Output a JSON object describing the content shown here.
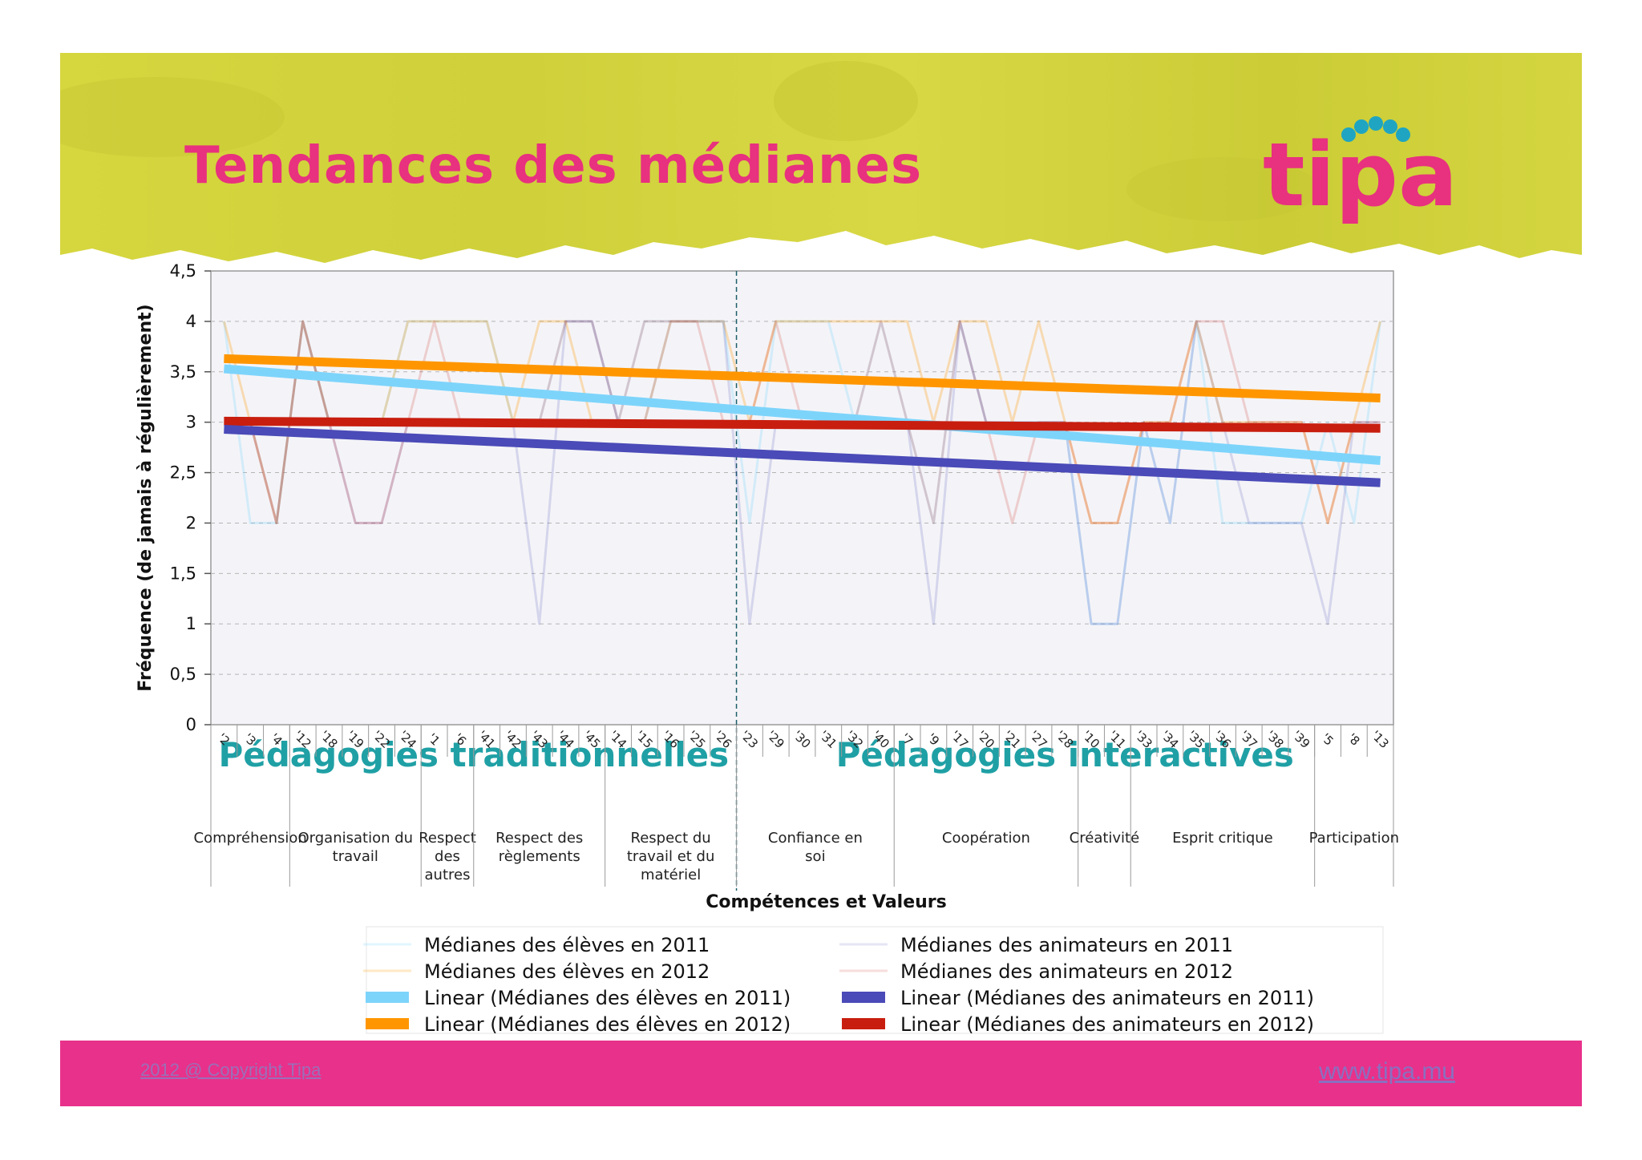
{
  "slide": {
    "title": "Tendances des médianes",
    "logo_text": "tipa",
    "footer_copyright": "2012 @ Copyright Tipa",
    "footer_url": "www.tipa.mu"
  },
  "colors": {
    "title": "#e8317f",
    "header_band": "#d4d53c",
    "footer_band": "#e8318a",
    "section_text": "#1fa0a5",
    "eleves_2011": "#7dd4fb",
    "eleves_2012": "#ff9600",
    "animateurs_2011": "#4a4ab8",
    "animateurs_2012": "#c81e0f"
  },
  "chart_data": {
    "type": "line",
    "xlabel": "Compétences et Valeurs",
    "ylabel": "Fréquence (de jamais à régulièrement)",
    "ylim": [
      0,
      4.5
    ],
    "yticks": [
      "0",
      "0,5",
      "1",
      "1,5",
      "2",
      "2,5",
      "3",
      "3,5",
      "4",
      "4,5"
    ],
    "grid": true,
    "categories": [
      "'2",
      "'3",
      "'4",
      "'12",
      "'18",
      "'19",
      "'22",
      "'24",
      "'1",
      "'6",
      "'41",
      "'42",
      "'43",
      "'44",
      "'45",
      "'14",
      "'15",
      "'16",
      "'25",
      "'26",
      "'23",
      "'29",
      "'30",
      "'31",
      "'32",
      "'40",
      "'7",
      "'9",
      "'17",
      "'20",
      "'21",
      "'27",
      "'28",
      "'10",
      "'11",
      "'33",
      "'34",
      "'35",
      "'36",
      "'37",
      "'38",
      "'39",
      "'5",
      "'8",
      "'13"
    ],
    "groups": [
      {
        "label": "Compréhension",
        "start": 0,
        "count": 3
      },
      {
        "label": "Organisation du travail",
        "start": 3,
        "count": 5
      },
      {
        "label": "Respect des autres",
        "start": 8,
        "count": 2
      },
      {
        "label": "Respect des règlements",
        "start": 10,
        "count": 5
      },
      {
        "label": "Respect du travail et du matériel",
        "start": 15,
        "count": 5
      },
      {
        "label": "Confiance en soi",
        "start": 20,
        "count": 6
      },
      {
        "label": "Coopération",
        "start": 26,
        "count": 7
      },
      {
        "label": "Créativité",
        "start": 33,
        "count": 2
      },
      {
        "label": "Esprit critique",
        "start": 35,
        "count": 7
      },
      {
        "label": "Participation",
        "start": 42,
        "count": 3
      }
    ],
    "sections": [
      {
        "label": "Pédagogies traditionnelles"
      },
      {
        "label": "Pédagogies interactives"
      }
    ],
    "section_divider_after": 19,
    "series": [
      {
        "name": "Médianes des élèves en 2011",
        "kind": "line",
        "values": [
          4,
          2,
          2,
          4,
          3,
          3,
          3,
          4,
          4,
          4,
          4,
          3,
          3,
          4,
          4,
          3,
          4,
          4,
          4,
          4,
          2,
          4,
          4,
          4,
          3,
          4,
          3,
          2,
          4,
          3,
          3,
          3,
          3,
          1,
          1,
          3,
          2,
          4,
          2,
          2,
          2,
          2,
          3,
          2,
          4
        ]
      },
      {
        "name": "Médianes des élèves en 2012",
        "kind": "line",
        "values": [
          4,
          3,
          2,
          4,
          3,
          3,
          3,
          4,
          4,
          4,
          4,
          3,
          4,
          4,
          3,
          3,
          3,
          4,
          4,
          4,
          3,
          4,
          4,
          4,
          4,
          4,
          4,
          3,
          4,
          4,
          3,
          4,
          3,
          2,
          2,
          3,
          3,
          4,
          3,
          3,
          3,
          3,
          2,
          3,
          4
        ]
      },
      {
        "name": "Médianes des animateurs en 2011",
        "kind": "line",
        "values": [
          3,
          3,
          2,
          4,
          3,
          2,
          2,
          3,
          3,
          3,
          3,
          3,
          1,
          4,
          4,
          3,
          3,
          4,
          4,
          4,
          1,
          3,
          3,
          3,
          3,
          3,
          3,
          1,
          4,
          3,
          3,
          3,
          3,
          1,
          1,
          3,
          2,
          4,
          3,
          2,
          2,
          2,
          1,
          3,
          3
        ]
      },
      {
        "name": "Médianes des animateurs en 2012",
        "kind": "line",
        "values": [
          3,
          3,
          2,
          4,
          3,
          2,
          2,
          3,
          4,
          3,
          3,
          3,
          3,
          4,
          4,
          3,
          4,
          4,
          4,
          3,
          3,
          4,
          3,
          3,
          3,
          4,
          3,
          2,
          4,
          3,
          2,
          3,
          3,
          2,
          2,
          3,
          3,
          4,
          4,
          3,
          3,
          3,
          2,
          3,
          3
        ]
      },
      {
        "name": "Linear (Médianes des élèves en 2011)",
        "kind": "trend",
        "from": 3.53,
        "to": 2.62
      },
      {
        "name": "Linear (Médianes des élèves en 2012)",
        "kind": "trend",
        "from": 3.63,
        "to": 3.24
      },
      {
        "name": "Linear (Médianes des animateurs en 2011)",
        "kind": "trend",
        "from": 2.93,
        "to": 2.4
      },
      {
        "name": "Linear (Médianes des animateurs en 2012)",
        "kind": "trend",
        "from": 3.01,
        "to": 2.94
      }
    ],
    "legend": {
      "placement": "bottom",
      "entries": [
        "Médianes des élèves en 2011",
        "Médianes des élèves en 2012",
        "Linear (Médianes des élèves en 2011)",
        "Linear (Médianes des élèves en 2012)",
        "Médianes des animateurs en 2011",
        "Médianes des animateurs en 2012",
        "Linear (Médianes des animateurs en 2011)",
        "Linear (Médianes des animateurs en 2012)"
      ]
    }
  }
}
